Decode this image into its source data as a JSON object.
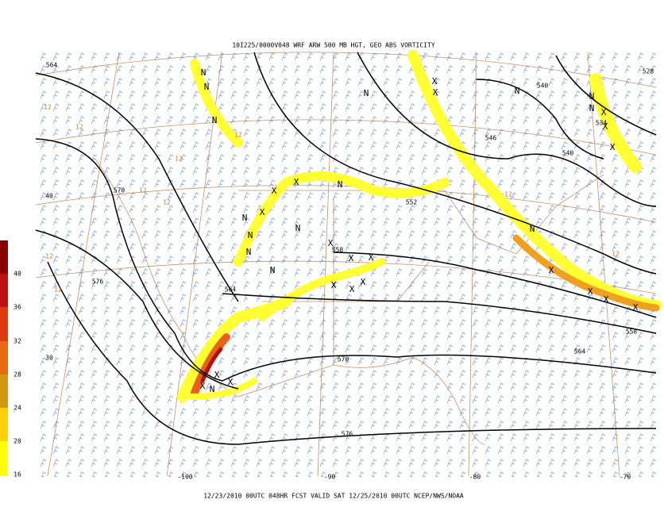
{
  "header": {
    "title": "10I225/0000V048 WRF ARW 500 MB HGT, GEO ABS VORTICITY"
  },
  "footer": {
    "caption": "12/23/2010 00UTC 048HR FCST VALID SAT 12/25/2010 00UTC  NCEP/NWS/NOAA"
  },
  "colorbar": {
    "labels": [
      40,
      36,
      32,
      28,
      24,
      20,
      16
    ]
  },
  "longitude_labels": [
    "-100",
    "-90",
    "-80",
    "-70"
  ],
  "latitude_labels": [
    "40",
    "30"
  ],
  "height_labels": [
    "564",
    "570",
    "576",
    "564",
    "558",
    "552",
    "546",
    "540",
    "540",
    "534",
    "528",
    "558",
    "564",
    "570",
    "576"
  ],
  "vorticity_labels": [
    "12",
    "12",
    "12",
    "12",
    "12",
    "12",
    "12",
    "12",
    "12",
    "12"
  ],
  "minima": [
    "N",
    "N",
    "N",
    "N",
    "N",
    "N",
    "N",
    "N",
    "N",
    "N",
    "N",
    "N",
    "N",
    "N",
    "N"
  ],
  "maxima": [
    "X",
    "X",
    "X",
    "X",
    "X",
    "X",
    "X",
    "X",
    "X",
    "X",
    "X",
    "X",
    "X",
    "X",
    "X",
    "X",
    "X",
    "X",
    "X",
    "X",
    "X"
  ]
}
